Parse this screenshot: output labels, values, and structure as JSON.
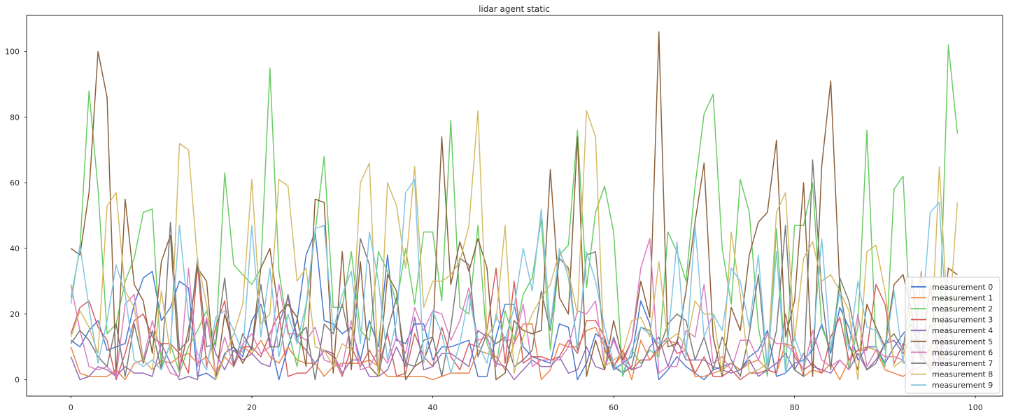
{
  "chart_data": {
    "type": "line",
    "title": "lidar agent static",
    "xlabel": "",
    "ylabel": "",
    "xlim": [
      -4.9,
      103.0
    ],
    "ylim": [
      -5,
      111
    ],
    "xticks": [
      0,
      20,
      40,
      60,
      80,
      100
    ],
    "yticks": [
      0,
      20,
      40,
      60,
      80,
      100
    ],
    "grid": false,
    "legend_position": "bottom-right",
    "series": [
      {
        "name": "measurement 0",
        "color": "#4878d0",
        "values": [
          12,
          10,
          15,
          18,
          9,
          10,
          11,
          23,
          31,
          33,
          18,
          22,
          30,
          28,
          1,
          2,
          0,
          8,
          10,
          7,
          18,
          23,
          12,
          0,
          10,
          18,
          38,
          45,
          18,
          17,
          14,
          16,
          6,
          18,
          10,
          38,
          12,
          11,
          17,
          17,
          6,
          10,
          10,
          11,
          12,
          1,
          1,
          13,
          23,
          23,
          10,
          7,
          6,
          5,
          17,
          16,
          0,
          5,
          14,
          12,
          3,
          5,
          7,
          24,
          17,
          0,
          3,
          7,
          4,
          2,
          0,
          3,
          4,
          5,
          3,
          7,
          9,
          15,
          1,
          2,
          5,
          6,
          9,
          17,
          8,
          22,
          16,
          6,
          10,
          10,
          5,
          10,
          14,
          17,
          6,
          17,
          8,
          15,
          11
        ]
      },
      {
        "name": "measurement 1",
        "color": "#ee854a",
        "values": [
          10,
          2,
          1,
          1,
          1,
          3,
          0,
          5,
          6,
          3,
          6,
          5,
          7,
          8,
          5,
          7,
          2,
          7,
          4,
          10,
          8,
          12,
          7,
          5,
          10,
          6,
          5,
          5,
          1,
          4,
          5,
          5,
          5,
          6,
          4,
          1,
          1,
          1,
          1,
          1,
          0,
          1,
          2,
          2,
          2,
          9,
          8,
          7,
          3,
          11,
          17,
          17,
          0,
          3,
          11,
          10,
          10,
          15,
          16,
          10,
          4,
          8,
          0,
          12,
          6,
          9,
          12,
          11,
          9,
          1,
          1,
          2,
          3,
          5,
          3,
          5,
          6,
          3,
          2,
          11,
          10,
          1,
          3,
          2,
          5,
          0,
          6,
          9,
          10,
          9,
          3,
          2,
          1,
          3,
          4,
          10,
          8,
          3,
          3
        ]
      },
      {
        "name": "measurement 2",
        "color": "#6acc64",
        "values": [
          25,
          40,
          88,
          58,
          14,
          17,
          30,
          37,
          51,
          52,
          4,
          11,
          2,
          10,
          15,
          21,
          10,
          63,
          35,
          32,
          29,
          34,
          95,
          33,
          15,
          4,
          22,
          45,
          68,
          22,
          22,
          39,
          15,
          12,
          39,
          33,
          23,
          40,
          23,
          45,
          45,
          24,
          79,
          22,
          20,
          47,
          11,
          4,
          21,
          12,
          26,
          31,
          49,
          9,
          38,
          41,
          76,
          28,
          51,
          59,
          45,
          1,
          9,
          5,
          9,
          7,
          45,
          39,
          30,
          59,
          81,
          87,
          40,
          23,
          61,
          51,
          16,
          1,
          46,
          3,
          47,
          47,
          60,
          16,
          9,
          30,
          3,
          16,
          76,
          10,
          4,
          58,
          62,
          5,
          5,
          4,
          13,
          102,
          75
        ]
      },
      {
        "name": "measurement 3",
        "color": "#d65f5f",
        "values": [
          14,
          22,
          24,
          16,
          12,
          0,
          8,
          18,
          20,
          13,
          11,
          11,
          8,
          2,
          35,
          4,
          16,
          24,
          5,
          10,
          10,
          7,
          14,
          20,
          1,
          2,
          2,
          5,
          9,
          7,
          1,
          10,
          4,
          9,
          4,
          14,
          1,
          2,
          14,
          7,
          4,
          16,
          7,
          3,
          11,
          10,
          15,
          34,
          5,
          30,
          5,
          7,
          7,
          6,
          7,
          12,
          8,
          18,
          18,
          13,
          4,
          9,
          3,
          6,
          6,
          10,
          13,
          8,
          9,
          2,
          7,
          1,
          1,
          3,
          0,
          2,
          2,
          3,
          2,
          20,
          7,
          3,
          5,
          2,
          13,
          19,
          6,
          9,
          9,
          29,
          23,
          5,
          11,
          9,
          8,
          3,
          5,
          18,
          7
        ]
      },
      {
        "name": "measurement 4",
        "color": "#956cb4",
        "values": [
          7,
          0,
          1,
          4,
          3,
          1,
          4,
          2,
          2,
          1,
          11,
          5,
          0,
          1,
          0,
          18,
          8,
          3,
          9,
          6,
          8,
          5,
          4,
          17,
          25,
          12,
          9,
          5,
          9,
          8,
          2,
          6,
          6,
          1,
          1,
          3,
          10,
          4,
          19,
          3,
          4,
          8,
          8,
          6,
          4,
          15,
          13,
          5,
          4,
          0,
          3,
          6,
          4,
          4,
          7,
          2,
          3,
          10,
          4,
          3,
          13,
          5,
          3,
          4,
          10,
          13,
          4,
          12,
          6,
          6,
          6,
          4,
          3,
          2,
          3,
          6,
          1,
          3,
          5,
          8,
          3,
          8,
          4,
          3,
          2,
          6,
          3,
          8,
          3,
          5,
          11,
          12,
          8,
          13,
          7,
          9,
          2,
          11,
          12
        ]
      },
      {
        "name": "measurement 5",
        "color": "#8c613c",
        "values": [
          40,
          38,
          57,
          100,
          86,
          1,
          55,
          29,
          24,
          8,
          36,
          44,
          3,
          15,
          34,
          30,
          0,
          20,
          10,
          5,
          10,
          34,
          40,
          20,
          23,
          19,
          4,
          55,
          54,
          2,
          39,
          3,
          36,
          4,
          1,
          32,
          27,
          0,
          4,
          6,
          13,
          74,
          29,
          42,
          33,
          43,
          34,
          0,
          2,
          18,
          15,
          14,
          15,
          64,
          25,
          20,
          74,
          1,
          12,
          3,
          18,
          6,
          12,
          30,
          19,
          106,
          10,
          11,
          27,
          48,
          66,
          13,
          1,
          22,
          15,
          38,
          48,
          51,
          73,
          13,
          24,
          60,
          1,
          65,
          91,
          28,
          11,
          3,
          23,
          16,
          10,
          29,
          32,
          20,
          6,
          29,
          5,
          34,
          32
        ]
      },
      {
        "name": "measurement 6",
        "color": "#dc7ec0",
        "values": [
          29,
          15,
          4,
          3,
          4,
          1,
          23,
          26,
          6,
          18,
          8,
          2,
          1,
          34,
          4,
          19,
          2,
          13,
          4,
          11,
          14,
          8,
          10,
          29,
          14,
          14,
          12,
          16,
          6,
          5,
          4,
          18,
          3,
          4,
          9,
          5,
          13,
          8,
          22,
          15,
          21,
          20,
          12,
          18,
          28,
          12,
          13,
          4,
          13,
          11,
          23,
          4,
          6,
          6,
          6,
          10,
          21,
          20,
          24,
          4,
          12,
          5,
          12,
          34,
          43,
          2,
          4,
          4,
          15,
          13,
          29,
          5,
          7,
          3,
          12,
          12,
          6,
          14,
          11,
          11,
          8,
          3,
          15,
          6,
          4,
          6,
          3,
          20,
          4,
          9,
          7,
          7,
          6,
          1,
          33,
          2,
          14,
          5,
          10
        ]
      },
      {
        "name": "measurement 7",
        "color": "#797979",
        "values": [
          11,
          15,
          12,
          7,
          4,
          17,
          1,
          17,
          5,
          15,
          3,
          48,
          9,
          12,
          37,
          10,
          11,
          31,
          4,
          14,
          9,
          29,
          10,
          10,
          26,
          13,
          16,
          0,
          17,
          14,
          23,
          10,
          43,
          35,
          1,
          15,
          25,
          5,
          4,
          12,
          13,
          1,
          16,
          37,
          35,
          7,
          14,
          11,
          13,
          4,
          6,
          9,
          27,
          15,
          37,
          34,
          9,
          38,
          39,
          9,
          4,
          2,
          4,
          16,
          15,
          9,
          17,
          20,
          18,
          6,
          13,
          3,
          13,
          6,
          1,
          14,
          32,
          3,
          15,
          47,
          3,
          1,
          67,
          27,
          3,
          31,
          24,
          10,
          3,
          6,
          11,
          14,
          9,
          31,
          7,
          4,
          7,
          6,
          8
        ]
      },
      {
        "name": "measurement 8",
        "color": "#d5bb67",
        "values": [
          13,
          21,
          16,
          8,
          53,
          57,
          27,
          22,
          6,
          3,
          27,
          8,
          72,
          70,
          36,
          23,
          0,
          7,
          14,
          23,
          61,
          17,
          20,
          61,
          59,
          30,
          34,
          10,
          9,
          4,
          11,
          9,
          60,
          66,
          1,
          60,
          53,
          34,
          65,
          22,
          30,
          30,
          32,
          36,
          47,
          82,
          13,
          18,
          47,
          2,
          13,
          20,
          25,
          29,
          39,
          33,
          20,
          82,
          74,
          4,
          6,
          8,
          18,
          19,
          13,
          36,
          12,
          14,
          10,
          24,
          20,
          20,
          2,
          45,
          26,
          2,
          3,
          5,
          51,
          57,
          12,
          37,
          42,
          30,
          32,
          27,
          21,
          0,
          39,
          41,
          27,
          4,
          6,
          23,
          32,
          3,
          65,
          14,
          54
        ]
      },
      {
        "name": "measurement 9",
        "color": "#82c6e2",
        "values": [
          23,
          41,
          22,
          5,
          18,
          35,
          26,
          6,
          4,
          6,
          3,
          11,
          47,
          19,
          8,
          3,
          19,
          21,
          15,
          8,
          47,
          13,
          34,
          7,
          20,
          11,
          23,
          46,
          47,
          15,
          26,
          33,
          11,
          45,
          30,
          6,
          18,
          57,
          61,
          5,
          21,
          14,
          2,
          11,
          26,
          11,
          5,
          20,
          12,
          22,
          40,
          27,
          52,
          16,
          40,
          31,
          10,
          39,
          30,
          16,
          5,
          2,
          9,
          16,
          14,
          11,
          12,
          42,
          7,
          47,
          13,
          20,
          15,
          34,
          30,
          16,
          38,
          3,
          39,
          2,
          13,
          5,
          10,
          43,
          9,
          27,
          9,
          30,
          16,
          15,
          9,
          27,
          5,
          6,
          16,
          51,
          54,
          8,
          12
        ]
      }
    ]
  }
}
